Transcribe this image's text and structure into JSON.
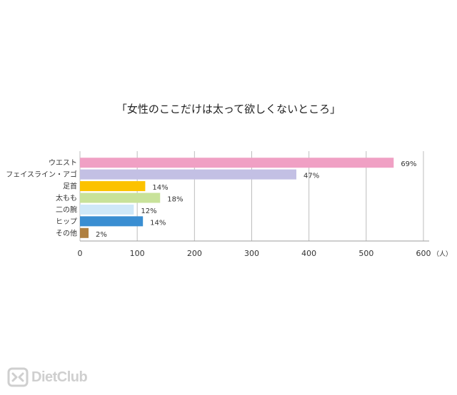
{
  "chart_data": {
    "type": "bar",
    "orientation": "horizontal",
    "title": "「女性のここだけは太って欲しくないところ」",
    "categories": [
      "ウエスト",
      "フェイスライン・アゴ",
      "足首",
      "太もも",
      "二の腕",
      "ヒップ",
      "その他"
    ],
    "values": [
      548,
      378,
      114,
      140,
      94,
      110,
      15
    ],
    "data_labels": [
      "69%",
      "47%",
      "14%",
      "18%",
      "12%",
      "14%",
      "2%"
    ],
    "colors": [
      "#f0a0c4",
      "#c3c0e4",
      "#fcc200",
      "#c8e29a",
      "#cfe8f8",
      "#3a8ed2",
      "#b08040"
    ],
    "xlim": [
      0,
      600
    ],
    "xticks": [
      "0",
      "100",
      "200",
      "300",
      "400",
      "500",
      "600"
    ],
    "x_unit": "（人）",
    "grid": true,
    "legend": "none"
  },
  "brand": {
    "name": "DietClub",
    "color": "#cfcfcf"
  }
}
